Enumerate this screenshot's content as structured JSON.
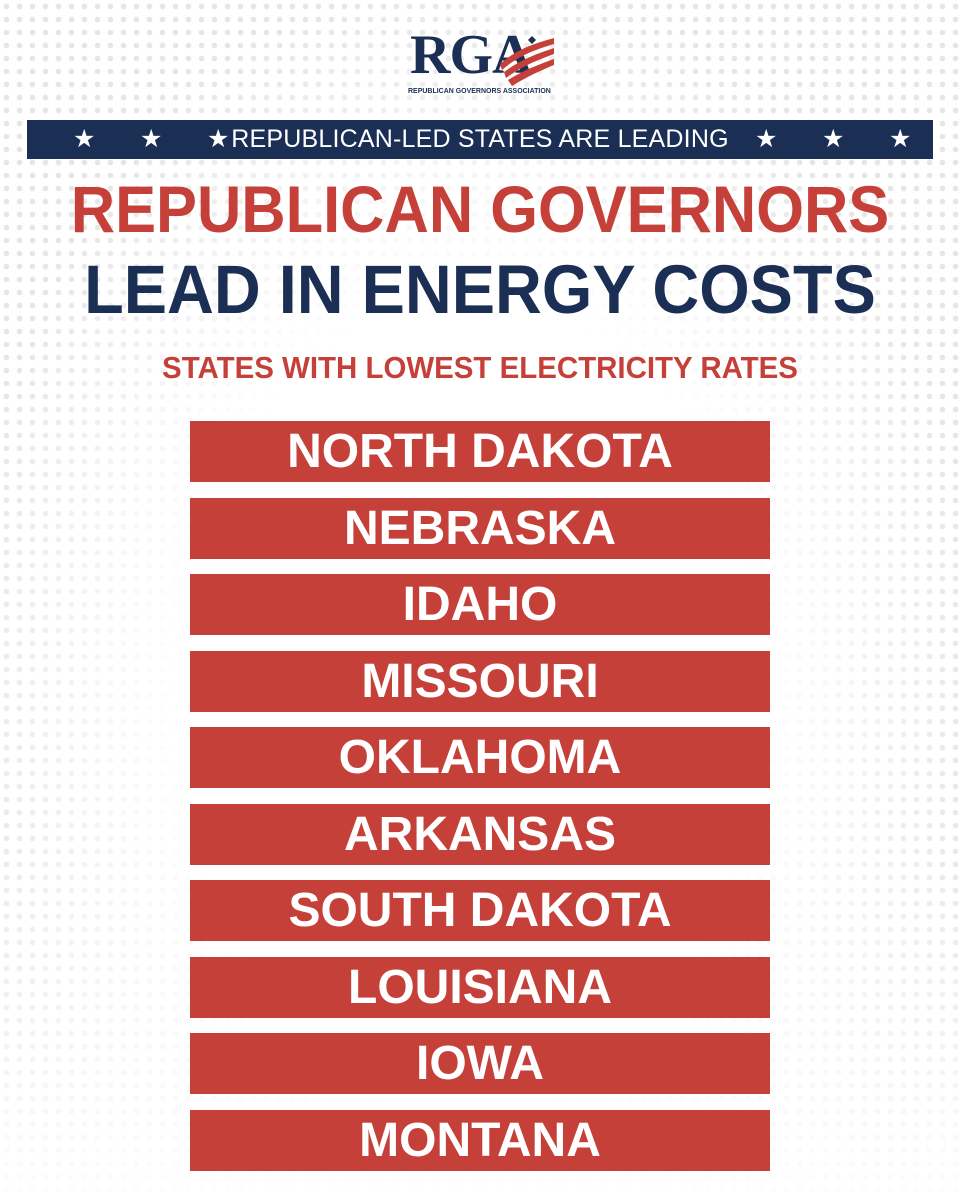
{
  "logo": {
    "letters": "RGA",
    "subtitle": "REPUBLICAN GOVERNORS ASSOCIATION"
  },
  "banner": {
    "text": "REPUBLICAN-LED STATES ARE LEADING",
    "star": "★"
  },
  "headline": {
    "line1": "REPUBLICAN GOVERNORS",
    "line2": "LEAD IN ENERGY COSTS"
  },
  "subhead": "STATES WITH LOWEST ELECTRICITY RATES",
  "states": [
    "NORTH DAKOTA",
    "NEBRASKA",
    "IDAHO",
    "MISSOURI",
    "OKLAHOMA",
    "ARKANSAS",
    "SOUTH DAKOTA",
    "LOUISIANA",
    "IOWA",
    "MONTANA"
  ],
  "colors": {
    "navy": "#1b2f55",
    "red": "#c6403a",
    "white": "#ffffff"
  },
  "icons": {
    "star": "star-icon",
    "flag": "flag-stripes-icon"
  }
}
